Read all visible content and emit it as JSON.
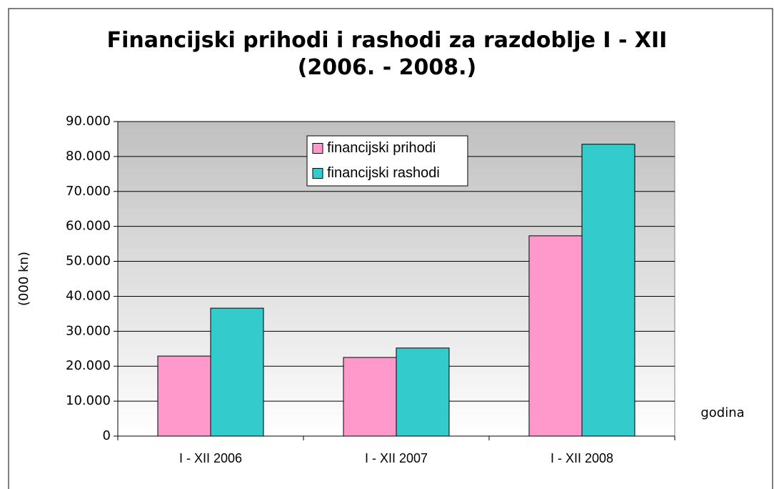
{
  "chart_data": {
    "type": "bar",
    "title": "Financijski prihodi i rashodi za razdoblje I - XII (2006. - 2008.)",
    "y_label": "(000 kn)",
    "x_label": "godina",
    "categories": [
      "I - XII 2006",
      "I - XII 2007",
      "I - XII 2008"
    ],
    "series": [
      {
        "name": "financijski prihodi",
        "color": "#ff99cc",
        "values": [
          22900,
          22500,
          57300
        ]
      },
      {
        "name": "financijski rashodi",
        "color": "#33cccc",
        "values": [
          36600,
          25200,
          83500
        ]
      }
    ],
    "ylim": [
      0,
      90000
    ],
    "yticks": [
      0,
      {
        "value": 10000,
        "label": "10.000"
      },
      {
        "value": 20000,
        "label": "20.000"
      },
      {
        "value": 30000,
        "label": "30.000"
      },
      {
        "value": 40000,
        "label": "40.000"
      },
      {
        "value": 50000,
        "label": "50.000"
      },
      {
        "value": 60000,
        "label": "60.000"
      },
      {
        "value": 70000,
        "label": "70.000"
      },
      {
        "value": 80000,
        "label": "80.000"
      },
      {
        "value": 90000,
        "label": "90.000"
      }
    ],
    "grid": true,
    "legend": "top"
  }
}
